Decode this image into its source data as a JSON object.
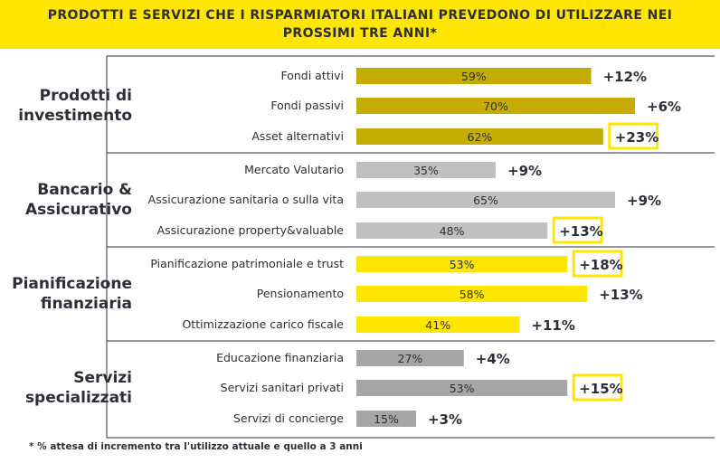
{
  "chart_data": {
    "type": "bar",
    "title": "PRODOTTI E SERVIZI CHE I RISPARMIATORI ITALIANI PREVEDONO DI UTILIZZARE NEI PROSSIMI TRE ANNI*",
    "footnote": "* % attesa di incremento tra l'utilizzo attuale e quello a 3 anni",
    "xlim": [
      0,
      100
    ],
    "groups": [
      {
        "label_lines": [
          "Prodotti di",
          "investimento"
        ],
        "color": "#c4ac00",
        "items": [
          {
            "label": "Fondi attivi",
            "value": 59,
            "value_label": "59%",
            "delta": "+12%",
            "highlight": false
          },
          {
            "label": "Fondi passivi",
            "value": 70,
            "value_label": "70%",
            "delta": "+6%",
            "highlight": false
          },
          {
            "label": "Asset alternativi",
            "value": 62,
            "value_label": "62%",
            "delta": "+23%",
            "highlight": true
          }
        ]
      },
      {
        "label_lines": [
          "Bancario &",
          "Assicurativo"
        ],
        "color": "#c0c0c0",
        "items": [
          {
            "label": "Mercato Valutario",
            "value": 35,
            "value_label": "35%",
            "delta": "+9%",
            "highlight": false
          },
          {
            "label": "Assicurazione sanitaria o sulla vita",
            "value": 65,
            "value_label": "65%",
            "delta": "+9%",
            "highlight": false
          },
          {
            "label": "Assicurazione property&valuable",
            "value": 48,
            "value_label": "48%",
            "delta": "+13%",
            "highlight": true
          }
        ]
      },
      {
        "label_lines": [
          "Pianificazione",
          "finanziaria"
        ],
        "color": "#ffe600",
        "items": [
          {
            "label": "Pianificazione patrimoniale e trust",
            "value": 53,
            "value_label": "53%",
            "delta": "+18%",
            "highlight": true
          },
          {
            "label": "Pensionamento",
            "value": 58,
            "value_label": "58%",
            "delta": "+13%",
            "highlight": false
          },
          {
            "label": "Ottimizzazione carico fiscale",
            "value": 41,
            "value_label": "41%",
            "delta": "+11%",
            "highlight": false
          }
        ]
      },
      {
        "label_lines": [
          "Servizi",
          "specializzati"
        ],
        "color": "#a6a6a6",
        "items": [
          {
            "label": "Educazione finanziaria",
            "value": 27,
            "value_label": "27%",
            "delta": "+4%",
            "highlight": false
          },
          {
            "label": "Servizi sanitari privati",
            "value": 53,
            "value_label": "53%",
            "delta": "+15%",
            "highlight": true
          },
          {
            "label": "Servizi di concierge",
            "value": 15,
            "value_label": "15%",
            "delta": "+3%",
            "highlight": false
          }
        ]
      }
    ],
    "colors": {
      "highlight_border": "#ffe600",
      "frame": "#2e2e38",
      "text": "#2e2e38"
    }
  }
}
